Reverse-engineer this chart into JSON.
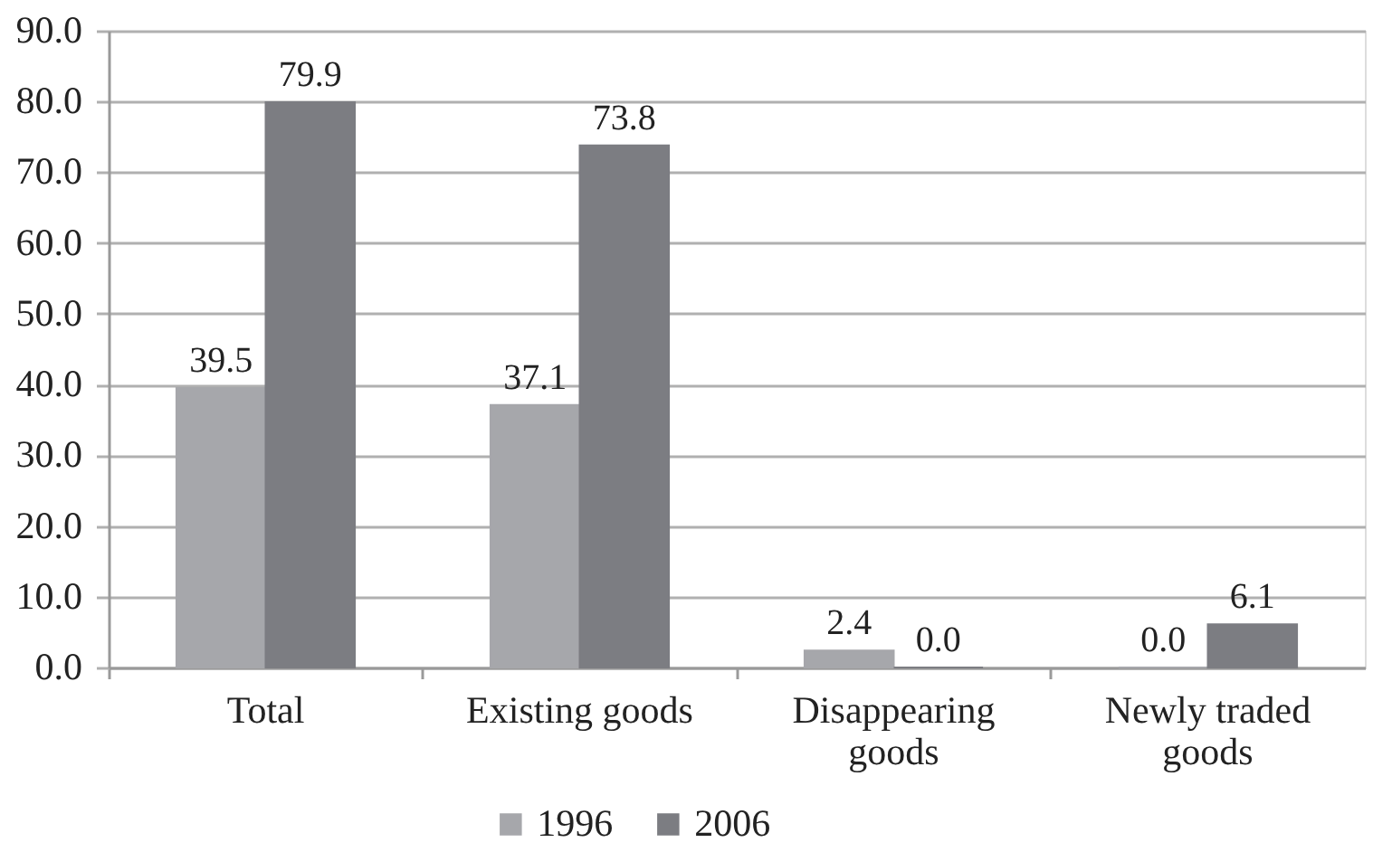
{
  "chart_data": {
    "type": "bar",
    "categories": [
      "Total",
      "Existing goods",
      "Disappearing goods",
      "Newly traded goods"
    ],
    "series": [
      {
        "name": "1996",
        "color": "#a6a7ab",
        "values": [
          39.5,
          37.1,
          2.4,
          0
        ],
        "value_labels": [
          "39.5",
          "37.1",
          "2.4",
          "0.0"
        ]
      },
      {
        "name": "2006",
        "color": "#7c7d82",
        "values": [
          79.9,
          73.8,
          0,
          6.1
        ],
        "value_labels": [
          "79.9",
          "73.8",
          "0.0",
          "6.1"
        ]
      }
    ],
    "ylim": [
      0,
      90
    ],
    "yticks": [
      {
        "value": 0,
        "label": "0.0"
      },
      {
        "value": 10,
        "label": "10.0"
      },
      {
        "value": 20,
        "label": "20.0"
      },
      {
        "value": 30,
        "label": "30.0"
      },
      {
        "value": 40,
        "label": "40.0"
      },
      {
        "value": 50,
        "label": "50.0"
      },
      {
        "value": 60,
        "label": "60.0"
      },
      {
        "value": 70,
        "label": "70.0"
      },
      {
        "value": 80,
        "label": "80.0"
      },
      {
        "value": 90,
        "label": "90.0"
      }
    ],
    "grid": "y",
    "legend": "bottom"
  }
}
